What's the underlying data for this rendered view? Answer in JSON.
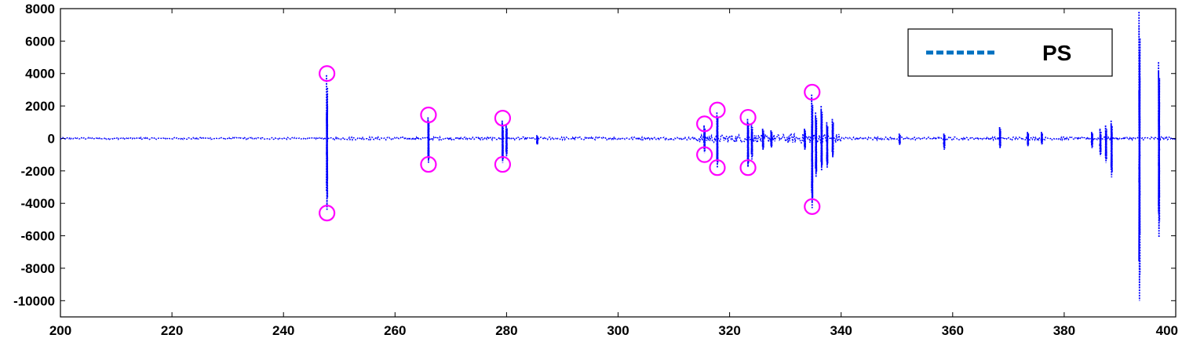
{
  "chart_data": {
    "type": "line",
    "title": "",
    "xlabel": "",
    "ylabel": "",
    "xlim": [
      200,
      400
    ],
    "ylim": [
      -11000,
      8000
    ],
    "grid": false,
    "legend_placement": "top-right",
    "x_ticks": [
      "200",
      "220",
      "240",
      "260",
      "280",
      "300",
      "320",
      "340",
      "360",
      "380",
      "400"
    ],
    "y_ticks": [
      "8000",
      "6000",
      "4000",
      "2000",
      "0",
      "-2000",
      "-4000",
      "-6000",
      "-8000",
      "-10000"
    ],
    "series": [
      {
        "name": "PS",
        "color": "#0000ff",
        "legend_color": "#0070c0",
        "line_style": "dotted",
        "spikes": [
          {
            "x": 247.8,
            "high": 3900,
            "low": -4400
          },
          {
            "x": 266.0,
            "high": 1300,
            "low": -1500
          },
          {
            "x": 279.3,
            "high": 1100,
            "low": -1500
          },
          {
            "x": 280.0,
            "high": 800,
            "low": -1100
          },
          {
            "x": 285.5,
            "high": 200,
            "low": -400
          },
          {
            "x": 315.5,
            "high": 800,
            "low": -900
          },
          {
            "x": 317.8,
            "high": 1600,
            "low": -1800
          },
          {
            "x": 323.3,
            "high": 1200,
            "low": -1800
          },
          {
            "x": 324.0,
            "high": 900,
            "low": -1300
          },
          {
            "x": 326.0,
            "high": 600,
            "low": -700
          },
          {
            "x": 327.5,
            "high": 500,
            "low": -600
          },
          {
            "x": 333.5,
            "high": 600,
            "low": -700
          },
          {
            "x": 334.8,
            "high": 2700,
            "low": -4300
          },
          {
            "x": 335.5,
            "high": 1600,
            "low": -2400
          },
          {
            "x": 336.5,
            "high": 2000,
            "low": -2000
          },
          {
            "x": 337.5,
            "high": 1000,
            "low": -1800
          },
          {
            "x": 338.5,
            "high": 1200,
            "low": -1200
          },
          {
            "x": 350.5,
            "high": 300,
            "low": -400
          },
          {
            "x": 358.5,
            "high": 300,
            "low": -700
          },
          {
            "x": 368.5,
            "high": 700,
            "low": -600
          },
          {
            "x": 373.5,
            "high": 400,
            "low": -500
          },
          {
            "x": 376.0,
            "high": 400,
            "low": -400
          },
          {
            "x": 385.0,
            "high": 400,
            "low": -600
          },
          {
            "x": 386.5,
            "high": 600,
            "low": -1100
          },
          {
            "x": 387.5,
            "high": 800,
            "low": -1500
          },
          {
            "x": 388.5,
            "high": 1100,
            "low": -2400
          },
          {
            "x": 393.5,
            "high": 7800,
            "low": -10000
          },
          {
            "x": 397.0,
            "high": 4700,
            "low": -6100
          }
        ],
        "noise_regions": [
          {
            "from": 200,
            "to": 247,
            "amp": 60
          },
          {
            "from": 249,
            "to": 314,
            "amp": 90
          },
          {
            "from": 314,
            "to": 330,
            "amp": 250
          },
          {
            "from": 330,
            "to": 340,
            "amp": 300
          },
          {
            "from": 340,
            "to": 400,
            "amp": 90
          }
        ]
      }
    ],
    "annotations": {
      "marker_color": "#ff00ff",
      "circled_points": [
        {
          "x": 247.8,
          "y": 4000
        },
        {
          "x": 247.8,
          "y": -4600
        },
        {
          "x": 266.0,
          "y": 1450
        },
        {
          "x": 266.0,
          "y": -1600
        },
        {
          "x": 279.3,
          "y": 1250
        },
        {
          "x": 279.3,
          "y": -1600
        },
        {
          "x": 315.5,
          "y": 900
        },
        {
          "x": 315.5,
          "y": -1000
        },
        {
          "x": 317.8,
          "y": 1750
        },
        {
          "x": 317.8,
          "y": -1800
        },
        {
          "x": 323.3,
          "y": 1300
        },
        {
          "x": 323.3,
          "y": -1800
        },
        {
          "x": 334.8,
          "y": 2850
        },
        {
          "x": 334.8,
          "y": -4200
        }
      ]
    }
  }
}
